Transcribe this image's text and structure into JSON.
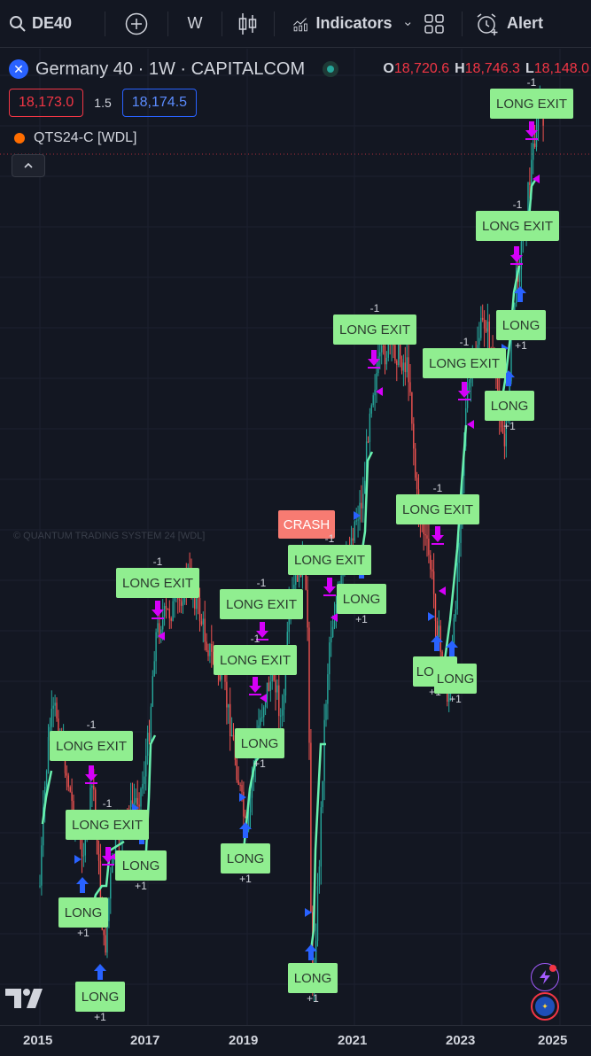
{
  "toolbar": {
    "symbol": "DE40",
    "add_icon": "plus-circle-icon",
    "interval": "W",
    "chart_type_icon": "candles-icon",
    "indicators_label": "Indicators",
    "layouts_icon": "grid-icon",
    "alert_label": "Alert"
  },
  "legend": {
    "symbol_title": "Germany 40 · 1W · CAPITALCOM",
    "ohlc": [
      {
        "k": "O",
        "v": "18,720.6"
      },
      {
        "k": "H",
        "v": "18,746.3"
      },
      {
        "k": "L",
        "v": "18,148.0"
      }
    ],
    "sell_price": "18,173.0",
    "spread": "1.5",
    "buy_price": "18,174.5",
    "indicator": "QTS24-C [WDL]"
  },
  "watermark": "© QUANTUM TRADING SYSTEM 24 [WDL]",
  "colors": {
    "up": "#26a69a",
    "down": "#ef5350",
    "label_bg": "#90ee90",
    "crash_bg": "#f77b72",
    "arrow_up": "#2962ff",
    "arrow_down": "#d500f9",
    "stop_line": "#69f0ae"
  },
  "signals": [
    {
      "text": "LONG EXIT",
      "qty": "-1",
      "kind": "exit"
    },
    {
      "text": "LONG EXIT",
      "qty": "-1",
      "kind": "exit"
    },
    {
      "text": "LONG",
      "qty": "+1",
      "kind": "long"
    },
    {
      "text": "LONG EXIT",
      "qty": "-1",
      "kind": "exit"
    },
    {
      "text": "LONG",
      "qty": "+1",
      "kind": "long"
    },
    {
      "text": "LONG EXIT",
      "qty": "-1",
      "kind": "exit"
    },
    {
      "text": "LONG",
      "qty": "+1",
      "kind": "long"
    },
    {
      "text": "LONG",
      "qty": "+1",
      "kind": "long"
    },
    {
      "text": "LONG EXIT",
      "qty": "-1",
      "kind": "exit"
    },
    {
      "text": "CRASH",
      "qty": "",
      "kind": "crash"
    },
    {
      "text": "LONG EXIT",
      "qty": "-1",
      "kind": "exit"
    },
    {
      "text": "LONG",
      "qty": "+1",
      "kind": "long"
    },
    {
      "text": "LONG EXIT",
      "qty": "-1",
      "kind": "exit"
    },
    {
      "text": "LONG EXIT",
      "qty": "-1",
      "kind": "exit"
    },
    {
      "text": "LONG",
      "qty": "+1",
      "kind": "long"
    },
    {
      "text": "LONG EXIT",
      "qty": "-1",
      "kind": "exit"
    },
    {
      "text": "LONG",
      "qty": "+1",
      "kind": "long"
    },
    {
      "text": "LONG",
      "qty": "+1",
      "kind": "long"
    },
    {
      "text": "LONG EXIT",
      "qty": "-1",
      "kind": "exit"
    },
    {
      "text": "LONG",
      "qty": "+1",
      "kind": "long"
    },
    {
      "text": "LONG",
      "qty": "+1",
      "kind": "long"
    },
    {
      "text": "LONG",
      "qty": "+1",
      "kind": "long"
    },
    {
      "text": "LONG EXIT",
      "qty": "-1",
      "kind": "exit"
    },
    {
      "text": "LONG",
      "qty": "+1",
      "kind": "long"
    }
  ],
  "x_axis": [
    "2015",
    "2017",
    "2019",
    "2021",
    "2023",
    "2025"
  ],
  "bottom_icons": [
    "tradingview-logo-icon",
    "lightning-icon",
    "globe-icon"
  ]
}
